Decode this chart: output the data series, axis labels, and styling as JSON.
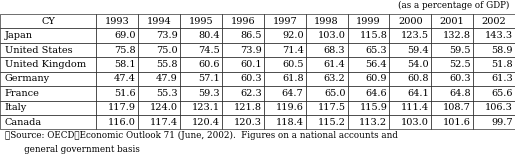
{
  "header_note": "(as a percentage of GDP)",
  "columns": [
    "CY",
    "1993",
    "1994",
    "1995",
    "1996",
    "1997",
    "1998",
    "1999",
    "2000",
    "2001",
    "2002"
  ],
  "rows": [
    [
      "Japan",
      "69.0",
      "73.9",
      "80.4",
      "86.5",
      "92.0",
      "103.0",
      "115.8",
      "123.5",
      "132.8",
      "143.3"
    ],
    [
      "United States",
      "75.8",
      "75.0",
      "74.5",
      "73.9",
      "71.4",
      "68.3",
      "65.3",
      "59.4",
      "59.5",
      "58.9"
    ],
    [
      "United Kingdom",
      "58.1",
      "55.8",
      "60.6",
      "60.1",
      "60.5",
      "61.4",
      "56.4",
      "54.0",
      "52.5",
      "51.8"
    ],
    [
      "Germany",
      "47.4",
      "47.9",
      "57.1",
      "60.3",
      "61.8",
      "63.2",
      "60.9",
      "60.8",
      "60.3",
      "61.3"
    ],
    [
      "France",
      "51.6",
      "55.3",
      "59.3",
      "62.3",
      "64.7",
      "65.0",
      "64.6",
      "64.1",
      "64.8",
      "65.6"
    ],
    [
      "Italy",
      "117.9",
      "124.0",
      "123.1",
      "121.8",
      "119.6",
      "117.5",
      "115.9",
      "111.4",
      "108.7",
      "106.3"
    ],
    [
      "Canada",
      "116.0",
      "117.4",
      "120.4",
      "120.3",
      "118.4",
      "115.2",
      "113.2",
      "103.0",
      "101.6",
      "99.7"
    ]
  ],
  "footnote_line1": "※Source: OECD／Economic Outlook 71 (June, 2002).  Figures on a national accounts and",
  "footnote_line2": "       general government basis",
  "bg_color": "#ffffff",
  "header_bg": "#ffffff",
  "grid_color": "#000000",
  "font_size": 7.0,
  "note_font_size": 6.3
}
